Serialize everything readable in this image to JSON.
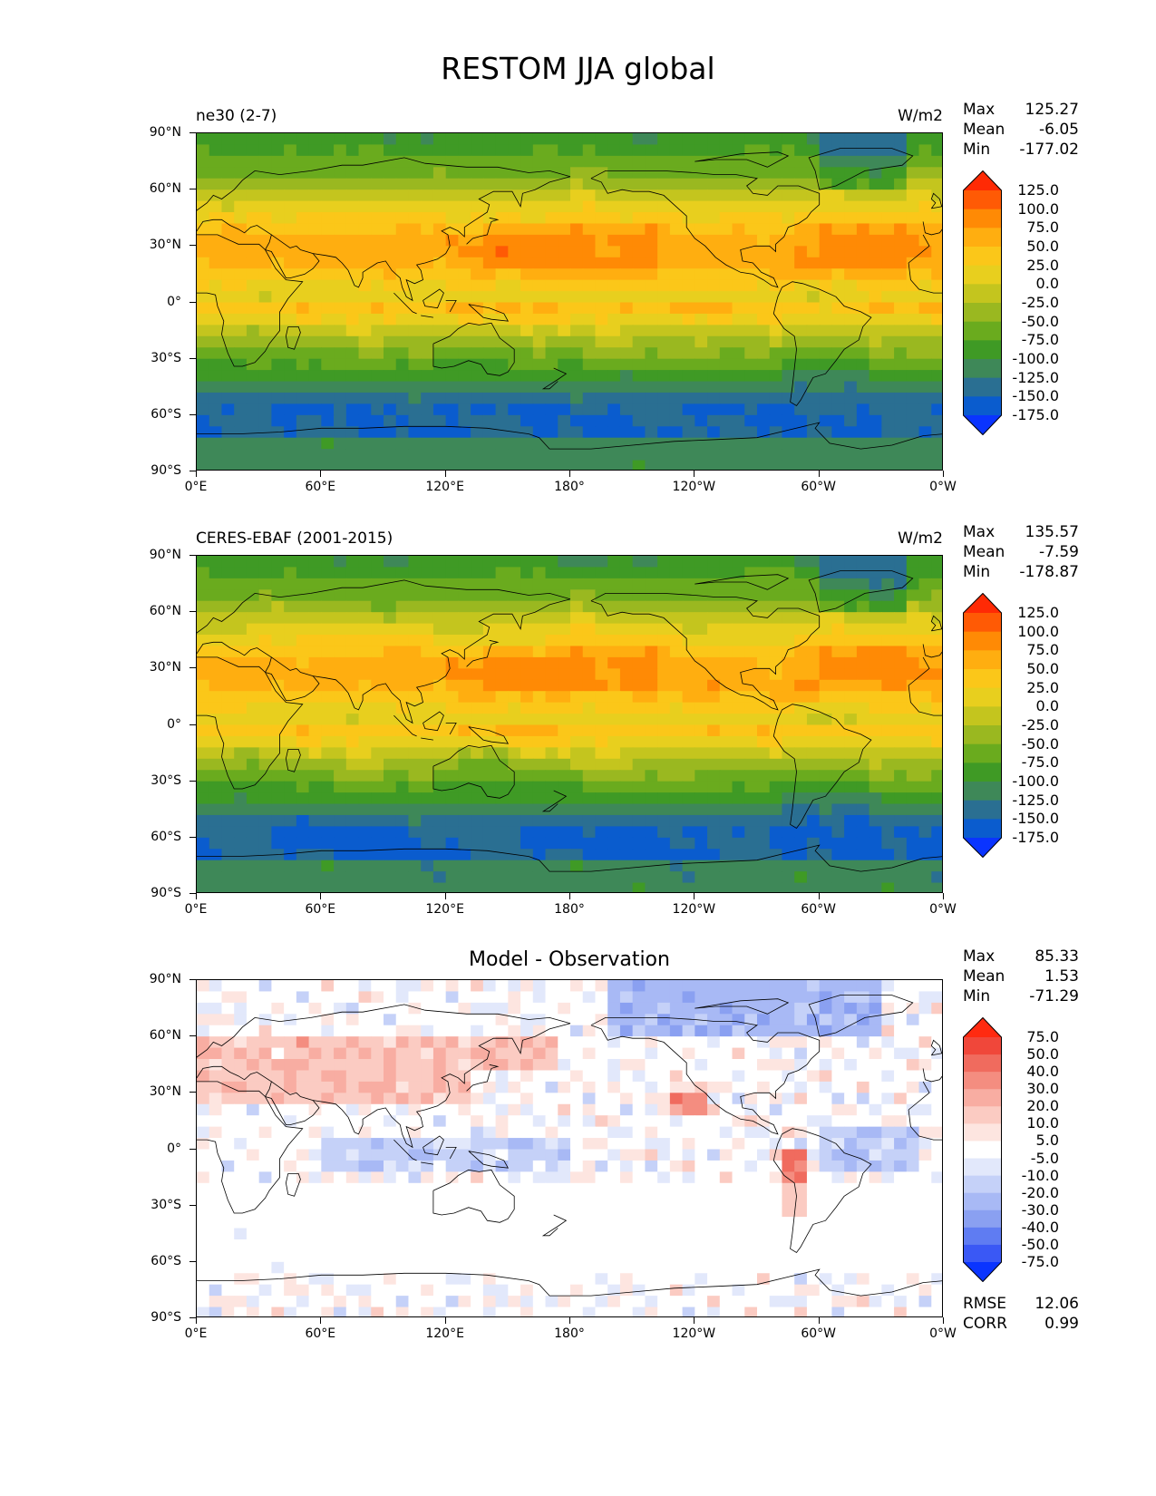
{
  "title": "RESTOM JJA global",
  "x_ticks": [
    "0°E",
    "60°E",
    "120°E",
    "180°",
    "120°W",
    "60°W",
    "0°W"
  ],
  "y_ticks": [
    "90°N",
    "60°N",
    "30°N",
    "0°",
    "30°S",
    "60°S",
    "90°S"
  ],
  "panels": [
    {
      "name": "model",
      "left_label": "ne30 (2-7)",
      "center_label": "",
      "right_label": "W/m2",
      "stats": [
        {
          "label": "Max",
          "value": "125.27"
        },
        {
          "label": "Mean",
          "value": "-6.05"
        },
        {
          "label": "Min",
          "value": "-177.02"
        }
      ],
      "colorbar_levels": [
        "125.0",
        "100.0",
        "75.0",
        "50.0",
        "25.0",
        "0.0",
        "-25.0",
        "-50.0",
        "-75.0",
        "-100.0",
        "-125.0",
        "-150.0",
        "-175.0"
      ],
      "colorbar_colors": [
        "#ff2a05",
        "#ff5a05",
        "#ff8a05",
        "#ffae10",
        "#fbc719",
        "#e8cf1e",
        "#c4c51e",
        "#9ab820",
        "#6aab1e",
        "#3f9a25",
        "#3e8858",
        "#2a6f92",
        "#0a5cce",
        "#0a34ff"
      ]
    },
    {
      "name": "observation",
      "left_label": "CERES-EBAF (2001-2015)",
      "center_label": "",
      "right_label": "W/m2",
      "stats": [
        {
          "label": "Max",
          "value": "135.57"
        },
        {
          "label": "Mean",
          "value": "-7.59"
        },
        {
          "label": "Min",
          "value": "-178.87"
        }
      ],
      "colorbar_levels": [
        "125.0",
        "100.0",
        "75.0",
        "50.0",
        "25.0",
        "0.0",
        "-25.0",
        "-50.0",
        "-75.0",
        "-100.0",
        "-125.0",
        "-150.0",
        "-175.0"
      ],
      "colorbar_colors": [
        "#ff2a05",
        "#ff5a05",
        "#ff8a05",
        "#ffae10",
        "#fbc719",
        "#e8cf1e",
        "#c4c51e",
        "#9ab820",
        "#6aab1e",
        "#3f9a25",
        "#3e8858",
        "#2a6f92",
        "#0a5cce",
        "#0a34ff"
      ]
    },
    {
      "name": "difference",
      "left_label": "",
      "center_label": "Model - Observation",
      "right_label": "",
      "stats": [
        {
          "label": "Max",
          "value": "85.33"
        },
        {
          "label": "Mean",
          "value": "1.53"
        },
        {
          "label": "Min",
          "value": "-71.29"
        }
      ],
      "bottom_stats": [
        {
          "label": "RMSE",
          "value": "12.06"
        },
        {
          "label": "CORR",
          "value": "0.99"
        }
      ],
      "colorbar_levels": [
        "75.0",
        "50.0",
        "40.0",
        "30.0",
        "20.0",
        "10.0",
        "5.0",
        "-5.0",
        "-10.0",
        "-20.0",
        "-30.0",
        "-40.0",
        "-50.0",
        "-75.0"
      ],
      "colorbar_colors": [
        "#ff2a10",
        "#f0473a",
        "#f06b5e",
        "#f48d80",
        "#f8ada2",
        "#fbcbc2",
        "#fde5e0",
        "#ffffff",
        "#e2e8fb",
        "#c5d1f8",
        "#a8b9f5",
        "#8aa0f1",
        "#5f7cf2",
        "#3a58f5",
        "#0a34ff"
      ]
    }
  ]
}
